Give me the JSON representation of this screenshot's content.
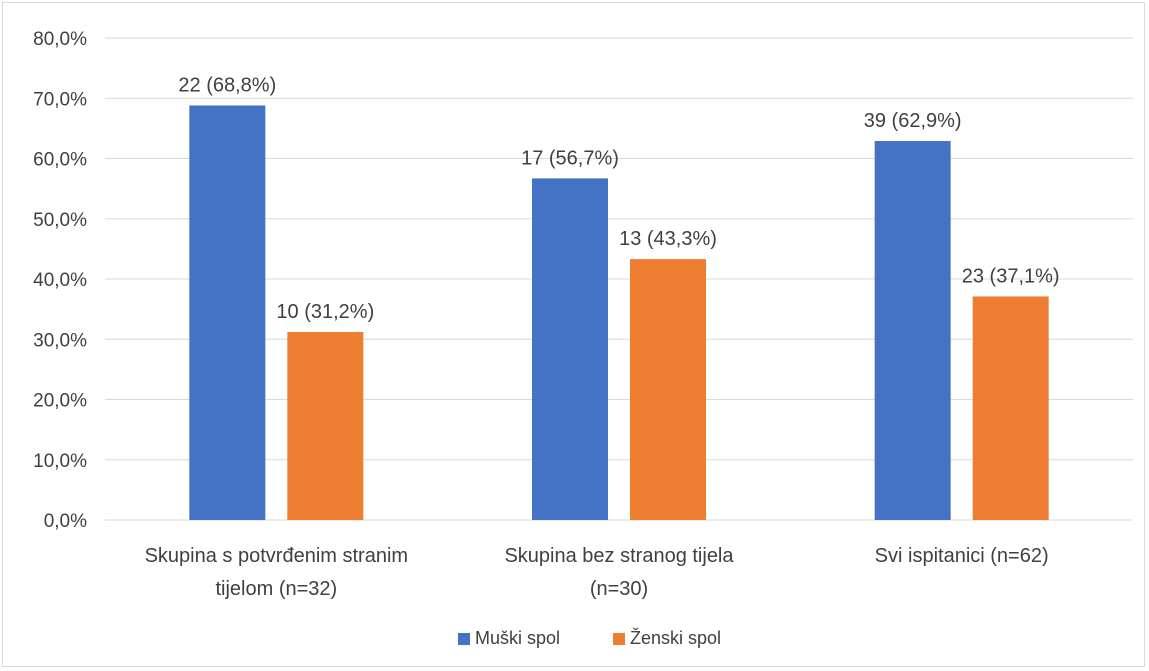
{
  "chart_data": {
    "type": "bar",
    "categories": [
      [
        "Skupina s potvrđenim stranim",
        "tijelom (n=32)"
      ],
      [
        "Skupina bez stranog tijela",
        "(n=30)"
      ],
      [
        "Svi ispitanici (n=62)"
      ]
    ],
    "series": [
      {
        "name": "Muški spol",
        "color": "#4472c4",
        "values": [
          68.8,
          56.7,
          62.9
        ],
        "labels": [
          "22 (68,8%)",
          "17 (56,7%)",
          "39 (62,9%)"
        ]
      },
      {
        "name": "Ženski spol",
        "color": "#ed7d31",
        "values": [
          31.2,
          43.3,
          37.1
        ],
        "labels": [
          "10 (31,2%)",
          "13 (43,3%)",
          "23 (37,1%)"
        ]
      }
    ],
    "ylim": [
      0,
      80
    ],
    "y_ticks": [
      "0,0%",
      "10,0%",
      "20,0%",
      "30,0%",
      "40,0%",
      "50,0%",
      "60,0%",
      "70,0%",
      "80,0%"
    ],
    "grid": true,
    "legend_position": "bottom"
  }
}
